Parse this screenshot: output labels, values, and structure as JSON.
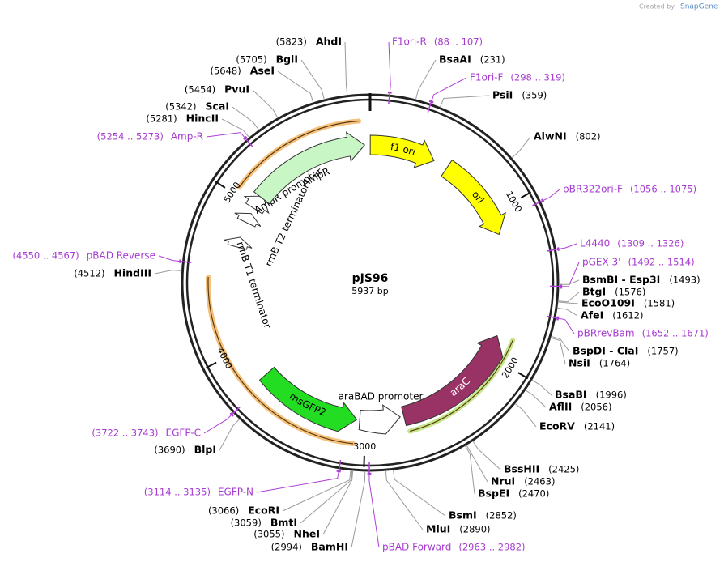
{
  "title": "pJS96",
  "length": {
    "value": 5937,
    "label": "5937 bp"
  },
  "created_by": [
    "Created by",
    "SnapGene"
  ],
  "ring_ticks": [
    1000,
    2000,
    3000,
    4000,
    5000
  ],
  "features": [
    {
      "name": "f1 ori",
      "start": 1,
      "end": 456,
      "direction": "forward",
      "color": "#ffff00"
    },
    {
      "name": "ori",
      "start": 557,
      "end": 1146,
      "direction": "forward",
      "color": "#ffff00"
    },
    {
      "name": "araC",
      "start": 1858,
      "end": 2735,
      "direction": "reverse",
      "color": "#993366"
    },
    {
      "name": "araBAD promoter",
      "start": 2760,
      "end": 3040,
      "direction": "reverse",
      "color": "#ffffff"
    },
    {
      "name": "msGFP2",
      "start": 3060,
      "end": 3770,
      "direction": "reverse",
      "color": "#22dd22"
    },
    {
      "name": "rrnB T1 terminator",
      "start": 4700,
      "end": 4770,
      "direction": "forward",
      "color": "#ffffff"
    },
    {
      "name": "rrnB T2 terminator",
      "start": 4880,
      "end": 4950,
      "direction": "forward",
      "color": "#ffffff"
    },
    {
      "name": "AmpR promoter",
      "start": 4990,
      "end": 5095,
      "direction": "forward",
      "color": "#ffffff"
    },
    {
      "name": "AmpR",
      "start": 5080,
      "end": 5900,
      "direction": "forward",
      "color": "#c8f7c5"
    }
  ],
  "sites": [
    {
      "name": "AhdI",
      "kind": "enzyme",
      "position": {
        "value": 5823,
        "label": "(5823)"
      }
    },
    {
      "name": "BglI",
      "kind": "enzyme",
      "position": {
        "value": 5705,
        "label": "(5705)"
      }
    },
    {
      "name": "AseI",
      "kind": "enzyme",
      "position": {
        "value": 5648,
        "label": "(5648)"
      }
    },
    {
      "name": "PvuI",
      "kind": "enzyme",
      "position": {
        "value": 5454,
        "label": "(5454)"
      }
    },
    {
      "name": "ScaI",
      "kind": "enzyme",
      "position": {
        "value": 5342,
        "label": "(5342)"
      }
    },
    {
      "name": "HincII",
      "kind": "enzyme",
      "position": {
        "value": 5281,
        "label": "(5281)"
      }
    },
    {
      "name": "Amp-R",
      "kind": "primer",
      "position": {
        "start": 5254,
        "end": 5273,
        "label": "(5254 .. 5273)"
      }
    },
    {
      "name": "pBAD Reverse",
      "kind": "primer",
      "position": {
        "start": 4550,
        "end": 4567,
        "label": "(4550 .. 4567)"
      }
    },
    {
      "name": "HindIII",
      "kind": "enzyme",
      "position": {
        "value": 4512,
        "label": "(4512)"
      }
    },
    {
      "name": "EGFP-C",
      "kind": "primer",
      "position": {
        "start": 3722,
        "end": 3743,
        "label": "(3722 .. 3743)"
      }
    },
    {
      "name": "BlpI",
      "kind": "enzyme",
      "position": {
        "value": 3690,
        "label": "(3690)"
      }
    },
    {
      "name": "EGFP-N",
      "kind": "primer",
      "position": {
        "start": 3114,
        "end": 3135,
        "label": "(3114 .. 3135)"
      }
    },
    {
      "name": "EcoRI",
      "kind": "enzyme",
      "position": {
        "value": 3066,
        "label": "(3066)"
      }
    },
    {
      "name": "BmtI",
      "kind": "enzyme",
      "position": {
        "value": 3059,
        "label": "(3059)"
      }
    },
    {
      "name": "NheI",
      "kind": "enzyme",
      "position": {
        "value": 3055,
        "label": "(3055)"
      }
    },
    {
      "name": "BamHI",
      "kind": "enzyme",
      "position": {
        "value": 2994,
        "label": "(2994)"
      }
    },
    {
      "name": "F1ori-R",
      "kind": "primer",
      "position": {
        "start": 88,
        "end": 107,
        "label": "(88 .. 107)"
      }
    },
    {
      "name": "BsaAI",
      "kind": "enzyme",
      "position": {
        "value": 231,
        "label": "(231)"
      }
    },
    {
      "name": "F1ori-F",
      "kind": "primer",
      "position": {
        "start": 298,
        "end": 319,
        "label": "(298 .. 319)"
      }
    },
    {
      "name": "PsiI",
      "kind": "enzyme",
      "position": {
        "value": 359,
        "label": "(359)"
      }
    },
    {
      "name": "AlwNI",
      "kind": "enzyme",
      "position": {
        "value": 802,
        "label": "(802)"
      }
    },
    {
      "name": "pBR322ori-F",
      "kind": "primer",
      "position": {
        "start": 1056,
        "end": 1075,
        "label": "(1056 .. 1075)"
      }
    },
    {
      "name": "L4440",
      "kind": "primer",
      "position": {
        "start": 1309,
        "end": 1326,
        "label": "(1309 .. 1326)"
      }
    },
    {
      "name": "pGEX 3'",
      "kind": "primer",
      "position": {
        "start": 1492,
        "end": 1514,
        "label": "(1492 .. 1514)"
      }
    },
    {
      "name": "BsmBI - Esp3I",
      "kind": "enzyme",
      "position": {
        "value": 1493,
        "label": "(1493)"
      }
    },
    {
      "name": "BtgI",
      "kind": "enzyme",
      "position": {
        "value": 1576,
        "label": "(1576)"
      }
    },
    {
      "name": "EcoO109I",
      "kind": "enzyme",
      "position": {
        "value": 1581,
        "label": "(1581)"
      }
    },
    {
      "name": "AfeI",
      "kind": "enzyme",
      "position": {
        "value": 1612,
        "label": "(1612)"
      }
    },
    {
      "name": "pBRrevBam",
      "kind": "primer",
      "position": {
        "start": 1652,
        "end": 1671,
        "label": "(1652 .. 1671)"
      }
    },
    {
      "name": "BspDI - ClaI",
      "kind": "enzyme",
      "position": {
        "value": 1757,
        "label": "(1757)"
      }
    },
    {
      "name": "NsiI",
      "kind": "enzyme",
      "position": {
        "value": 1764,
        "label": "(1764)"
      }
    },
    {
      "name": "BsaBI",
      "kind": "enzyme",
      "position": {
        "value": 1996,
        "label": "(1996)"
      }
    },
    {
      "name": "AflII",
      "kind": "enzyme",
      "position": {
        "value": 2056,
        "label": "(2056)"
      }
    },
    {
      "name": "EcoRV",
      "kind": "enzyme",
      "position": {
        "value": 2141,
        "label": "(2141)"
      }
    },
    {
      "name": "BssHII",
      "kind": "enzyme",
      "position": {
        "value": 2425,
        "label": "(2425)"
      }
    },
    {
      "name": "NruI",
      "kind": "enzyme",
      "position": {
        "value": 2463,
        "label": "(2463)"
      }
    },
    {
      "name": "BspEI",
      "kind": "enzyme",
      "position": {
        "value": 2470,
        "label": "(2470)"
      }
    },
    {
      "name": "BsmI",
      "kind": "enzyme",
      "position": {
        "value": 2852,
        "label": "(2852)"
      }
    },
    {
      "name": "MluI",
      "kind": "enzyme",
      "position": {
        "value": 2890,
        "label": "(2890)"
      }
    },
    {
      "name": "pBAD Forward",
      "kind": "primer",
      "position": {
        "start": 2963,
        "end": 2982,
        "label": "(2963 .. 2982)"
      }
    }
  ]
}
